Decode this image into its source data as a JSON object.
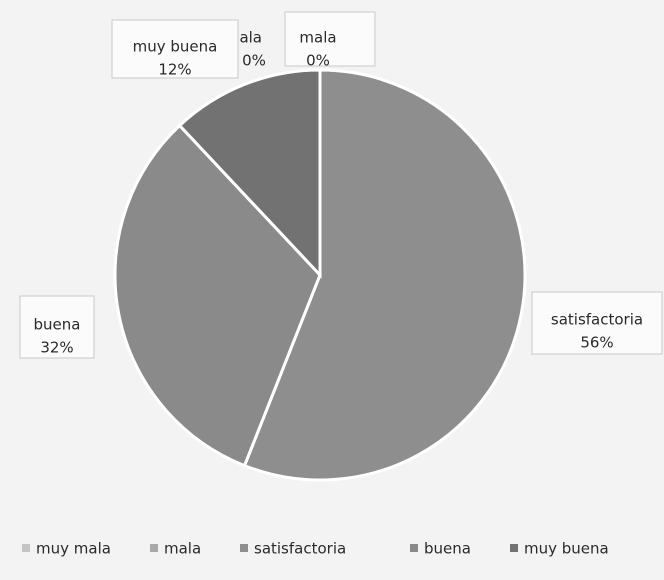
{
  "chart_data": {
    "type": "pie",
    "categories": [
      "muy mala",
      "mala",
      "satisfactoria",
      "buena",
      "muy buena"
    ],
    "values": [
      0,
      0,
      56,
      32,
      12
    ],
    "value_labels": [
      "0%",
      "0%",
      "56%",
      "32%",
      "12%"
    ],
    "colors": [
      "#c4c4c4",
      "#a8a8a8",
      "#8e8e8e",
      "#8a8a8a",
      "#727272"
    ],
    "legend": "bottom"
  }
}
